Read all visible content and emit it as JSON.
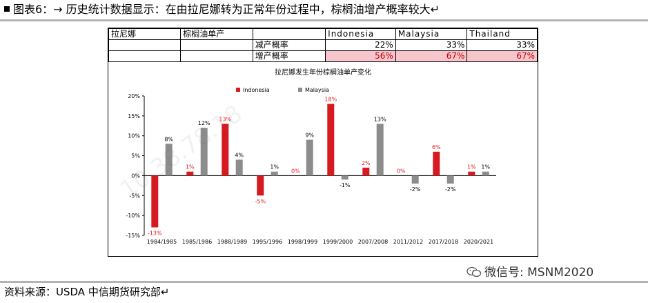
{
  "figure": {
    "title": "图表6：→ 历史统计数据显示：在由拉尼娜转为正常年份过程中，棕榈油增产概率较大↵",
    "source": "资料来源：USDA  中信期货研究部↵",
    "wechat": "微信号: MSNM2020"
  },
  "table": {
    "corner_label": "拉尼娜",
    "sub_label": "棕榈油单产",
    "columns": [
      "Indonesia",
      "Malaysia",
      "Thailand"
    ],
    "rows": [
      {
        "label": "减产概率",
        "values": [
          "22%",
          "33%",
          "33%"
        ],
        "highlight": false
      },
      {
        "label": "增产概率",
        "values": [
          "56%",
          "67%",
          "67%"
        ],
        "highlight": true
      }
    ]
  },
  "chart_data": {
    "type": "bar",
    "title": "拉尼娜发生年份棕榈油单产变化",
    "categories": [
      "1984/1985",
      "1985/1986",
      "1988/1989",
      "1995/1996",
      "1998/1999",
      "1999/2000",
      "2007/2008",
      "2011/2012",
      "2017/2018",
      "2020/2021"
    ],
    "series": [
      {
        "name": "Indonesia",
        "color": "#d71920",
        "values": [
          -13,
          1,
          13,
          -5,
          0,
          18,
          2,
          0,
          6,
          1
        ],
        "labels": [
          "-13%",
          "1%",
          "13%",
          "-5%",
          "0%",
          "18%",
          "2%",
          "0%",
          "6%",
          "1%"
        ]
      },
      {
        "name": "Malaysia",
        "color": "#8c8c8c",
        "values": [
          8,
          12,
          4,
          1,
          9,
          -1,
          13,
          -2,
          -2,
          1
        ],
        "labels": [
          "8%",
          "12%",
          "4%",
          "1%",
          "9%",
          "-1%",
          "13%",
          "-2%",
          "-2%",
          "1%"
        ]
      }
    ],
    "ylim": [
      -15,
      20
    ],
    "yticks": [
      -15,
      -10,
      -5,
      0,
      5,
      10,
      15,
      20
    ],
    "ytick_labels": [
      "-15%",
      "-10%",
      "-5%",
      "0%",
      "5%",
      "10%",
      "15%",
      "20%"
    ],
    "legend_position": "top",
    "grid": false
  }
}
